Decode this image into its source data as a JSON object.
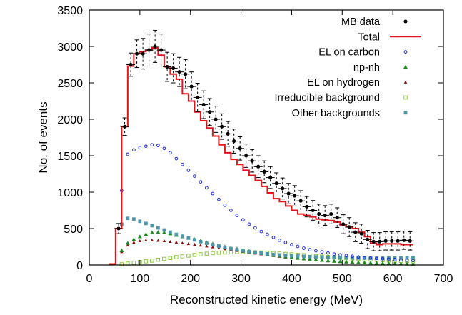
{
  "chart_data": {
    "type": "line",
    "xlabel": "Reconstructed kinetic energy (MeV)",
    "ylabel": "No. of events",
    "xlim": [
      0,
      700
    ],
    "ylim": [
      0,
      3500
    ],
    "x_ticks": [
      0,
      100,
      200,
      300,
      400,
      500,
      600,
      700
    ],
    "y_ticks": [
      0,
      500,
      1000,
      1500,
      2000,
      2500,
      3000,
      3500
    ],
    "grid": false,
    "legend_position": "top-right",
    "bin_edges": [
      40,
      52,
      64,
      76,
      88,
      100,
      112,
      124,
      136,
      148,
      160,
      172,
      184,
      196,
      208,
      220,
      232,
      244,
      256,
      268,
      280,
      292,
      304,
      316,
      328,
      340,
      352,
      364,
      376,
      388,
      400,
      412,
      424,
      436,
      448,
      460,
      472,
      484,
      496,
      508,
      520,
      532,
      544,
      556,
      568,
      580,
      592,
      604,
      616,
      628,
      640
    ],
    "series": [
      {
        "name": "MB data",
        "marker": "filled-circle",
        "color": "#000000",
        "x": [
          58,
          70,
          82,
          94,
          106,
          118,
          130,
          142,
          154,
          166,
          178,
          190,
          202,
          214,
          226,
          238,
          250,
          262,
          274,
          286,
          298,
          310,
          322,
          334,
          346,
          358,
          370,
          382,
          394,
          406,
          418,
          430,
          442,
          454,
          466,
          478,
          490,
          502,
          514,
          526,
          538,
          550,
          562,
          574,
          586,
          598,
          610,
          622,
          634
        ],
        "y": [
          500,
          1900,
          2750,
          2900,
          2900,
          2950,
          3000,
          2950,
          2720,
          2700,
          2650,
          2620,
          2450,
          2300,
          2200,
          2100,
          2000,
          1900,
          1800,
          1700,
          1600,
          1500,
          1430,
          1350,
          1280,
          1200,
          1120,
          1050,
          980,
          950,
          880,
          800,
          750,
          700,
          680,
          700,
          650,
          560,
          520,
          450,
          430,
          350,
          320,
          320,
          330,
          330,
          330,
          340,
          330
        ],
        "error": [
          70,
          120,
          160,
          190,
          210,
          220,
          220,
          220,
          200,
          200,
          200,
          200,
          200,
          195,
          190,
          185,
          180,
          175,
          170,
          165,
          160,
          160,
          155,
          150,
          150,
          150,
          145,
          145,
          140,
          140,
          140,
          140,
          135,
          135,
          135,
          135,
          135,
          130,
          130,
          130,
          130,
          125,
          125,
          125,
          125,
          125,
          125,
          125,
          125
        ]
      },
      {
        "name": "Total",
        "style": "step-line",
        "color": "#e8121a",
        "values": [
          15,
          500,
          1900,
          2730,
          2900,
          2930,
          2950,
          2980,
          2880,
          2720,
          2620,
          2550,
          2350,
          2250,
          2100,
          1980,
          1880,
          1770,
          1650,
          1540,
          1450,
          1380,
          1300,
          1230,
          1160,
          1080,
          990,
          910,
          870,
          810,
          750,
          700,
          680,
          660,
          630,
          620,
          610,
          590,
          550,
          530,
          500,
          450,
          390,
          300,
          280,
          290,
          290,
          290,
          280,
          280
        ]
      },
      {
        "name": "EL on carbon",
        "marker": "open-circle",
        "color": "#1e28e6",
        "x": [
          64,
          76,
          88,
          100,
          112,
          124,
          136,
          148,
          160,
          172,
          184,
          196,
          208,
          220,
          232,
          244,
          256,
          268,
          280,
          292,
          304,
          316,
          328,
          340,
          352,
          364,
          376,
          388,
          400,
          412,
          424,
          436,
          448,
          460,
          472,
          484,
          496,
          508,
          520,
          532,
          544,
          556,
          568,
          580,
          592,
          604,
          616,
          628,
          640
        ],
        "y": [
          1020,
          1520,
          1580,
          1610,
          1630,
          1650,
          1640,
          1600,
          1540,
          1460,
          1380,
          1300,
          1220,
          1140,
          1060,
          980,
          900,
          820,
          750,
          680,
          620,
          560,
          510,
          460,
          420,
          380,
          340,
          310,
          280,
          255,
          230,
          210,
          195,
          180,
          165,
          150,
          140,
          130,
          120,
          110,
          100,
          95,
          90,
          85,
          80,
          75,
          70,
          65,
          60
        ]
      },
      {
        "name": "np-nh",
        "marker": "filled-triangle",
        "color": "#1e8c1e",
        "x": [
          64,
          76,
          88,
          100,
          112,
          124,
          136,
          148,
          160,
          172,
          184,
          196,
          208,
          220,
          232,
          244,
          256,
          268,
          280,
          292,
          304,
          316,
          328,
          340,
          352,
          364,
          376,
          388,
          400,
          412,
          424,
          436,
          448,
          460,
          472,
          484,
          496,
          508,
          520,
          532,
          544,
          556,
          568,
          580,
          592,
          604,
          616,
          628,
          640
        ],
        "y": [
          200,
          300,
          350,
          390,
          420,
          445,
          450,
          445,
          430,
          410,
          390,
          370,
          350,
          330,
          310,
          290,
          270,
          250,
          235,
          220,
          205,
          190,
          175,
          160,
          148,
          136,
          125,
          114,
          104,
          95,
          87,
          80,
          73,
          66,
          60,
          54,
          49,
          44,
          40,
          36,
          32,
          29,
          26,
          23,
          21,
          19,
          17,
          15,
          13
        ]
      },
      {
        "name": "EL on hydrogen",
        "marker": "filled-triangle-small",
        "color": "#8c0a0a",
        "x": [
          64,
          76,
          88,
          100,
          112,
          124,
          136,
          148,
          160,
          172,
          184,
          196,
          208,
          220,
          232,
          244,
          256,
          268,
          280,
          292,
          304,
          316,
          328,
          340,
          352,
          364,
          376,
          388,
          400,
          412,
          424,
          436,
          448,
          460,
          472,
          484,
          496,
          508,
          520,
          532,
          544,
          556,
          568,
          580,
          592,
          604,
          616,
          628,
          640
        ],
        "y": [
          180,
          270,
          310,
          330,
          340,
          340,
          335,
          330,
          320,
          310,
          300,
          290,
          280,
          270,
          258,
          245,
          232,
          220,
          208,
          196,
          184,
          172,
          160,
          148,
          137,
          126,
          116,
          106,
          97,
          88,
          80,
          73,
          66,
          60,
          54,
          49,
          44,
          40,
          36,
          32,
          29,
          26,
          23,
          21,
          19,
          17,
          15,
          13,
          12
        ]
      },
      {
        "name": "Irreducible background",
        "marker": "open-square",
        "color": "#8cc83c",
        "x": [
          64,
          76,
          88,
          100,
          112,
          124,
          136,
          148,
          160,
          172,
          184,
          196,
          208,
          220,
          232,
          244,
          256,
          268,
          280,
          292,
          304,
          316,
          328,
          340,
          352,
          364,
          376,
          388,
          400,
          412,
          424,
          436,
          448,
          460,
          472,
          484,
          496,
          508,
          520,
          532,
          544,
          556,
          568,
          580,
          592,
          604,
          616,
          628,
          640
        ],
        "y": [
          10,
          20,
          30,
          40,
          50,
          60,
          72,
          84,
          96,
          108,
          118,
          128,
          138,
          147,
          155,
          162,
          168,
          172,
          175,
          177,
          177,
          176,
          174,
          171,
          167,
          163,
          158,
          153,
          147,
          141,
          135,
          129,
          122,
          116,
          110,
          104,
          98,
          93,
          88,
          83,
          78,
          74,
          70,
          66,
          62,
          59,
          56,
          53,
          50
        ]
      },
      {
        "name": "Other backgrounds",
        "marker": "filled-square",
        "color": "#4b96aa",
        "x": [
          64,
          76,
          88,
          100,
          112,
          124,
          136,
          148,
          160,
          172,
          184,
          196,
          208,
          220,
          232,
          244,
          256,
          268,
          280,
          292,
          304,
          316,
          328,
          340,
          352,
          364,
          376,
          388,
          400,
          412,
          424,
          436,
          448,
          460,
          472,
          484,
          496,
          508,
          520,
          532,
          544,
          556,
          568,
          580,
          592,
          604,
          616,
          628,
          640
        ],
        "y": [
          560,
          640,
          630,
          600,
          570,
          540,
          510,
          480,
          450,
          420,
          395,
          370,
          345,
          320,
          298,
          278,
          260,
          242,
          225,
          210,
          196,
          183,
          172,
          162,
          153,
          145,
          138,
          132,
          127,
          122,
          118,
          114,
          111,
          108,
          105,
          102,
          100,
          98,
          96,
          95,
          94,
          93,
          93,
          93,
          94,
          95,
          96,
          98,
          100
        ]
      }
    ]
  }
}
